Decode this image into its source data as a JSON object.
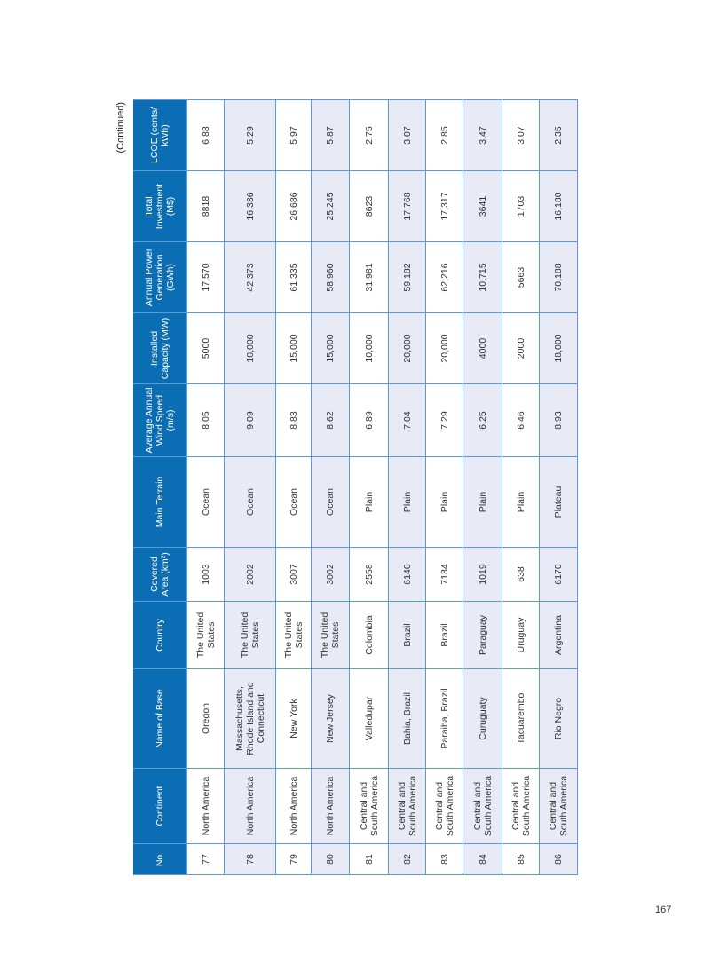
{
  "continued_label": "(Continued)",
  "page_number": "167",
  "headers": [
    "No.",
    "Continent",
    "Name of Base",
    "Country",
    "Covered Area (km²)",
    "Main Terrain",
    "Average Annual Wind Speed (m/s)",
    "Installed Capacity (MW)",
    "Annual Power Generation (GWh)",
    "Total Investment (M$)",
    "LCOE (cents/ kWh)"
  ],
  "rows": [
    [
      "77",
      "North America",
      "Oregon",
      "The United States",
      "1003",
      "Ocean",
      "8.05",
      "5000",
      "17,570",
      "8818",
      "6.88"
    ],
    [
      "78",
      "North America",
      "Massachusetts, Rhode Island and Connecticut",
      "The United States",
      "2002",
      "Ocean",
      "9.09",
      "10,000",
      "42,373",
      "16,336",
      "5.29"
    ],
    [
      "79",
      "North America",
      "New York",
      "The United States",
      "3007",
      "Ocean",
      "8.83",
      "15,000",
      "61,335",
      "26,686",
      "5.97"
    ],
    [
      "80",
      "North America",
      "New Jersey",
      "The United States",
      "3002",
      "Ocean",
      "8.62",
      "15,000",
      "58,960",
      "25,245",
      "5.87"
    ],
    [
      "81",
      "Central and South America",
      "Valledupar",
      "Colombia",
      "2558",
      "Plain",
      "6.89",
      "10,000",
      "31,981",
      "8623",
      "2.75"
    ],
    [
      "82",
      "Central and South America",
      "Bahia, Brazil",
      "Brazil",
      "6140",
      "Plain",
      "7.04",
      "20,000",
      "59,182",
      "17,768",
      "3.07"
    ],
    [
      "83",
      "Central and South America",
      "Paraiba, Brazil",
      "Brazil",
      "7184",
      "Plain",
      "7.29",
      "20,000",
      "62,216",
      "17,317",
      "2.85"
    ],
    [
      "84",
      "Central and South America",
      "Curuguaty",
      "Paraguay",
      "1019",
      "Plain",
      "6.25",
      "4000",
      "10,715",
      "3641",
      "3.47"
    ],
    [
      "85",
      "Central and South America",
      "Tacuarembo",
      "Uruguay",
      "638",
      "Plain",
      "6.46",
      "2000",
      "5663",
      "1703",
      "3.07"
    ],
    [
      "86",
      "Central and South America",
      "Rio Negro",
      "Argentina",
      "6170",
      "Plateau",
      "8.93",
      "18,000",
      "70,188",
      "16,180",
      "2.35"
    ]
  ],
  "colors": {
    "header_bg": "#0b6db4",
    "alt_row_bg": "#e8ebf6",
    "border": "#5b9bd5"
  }
}
